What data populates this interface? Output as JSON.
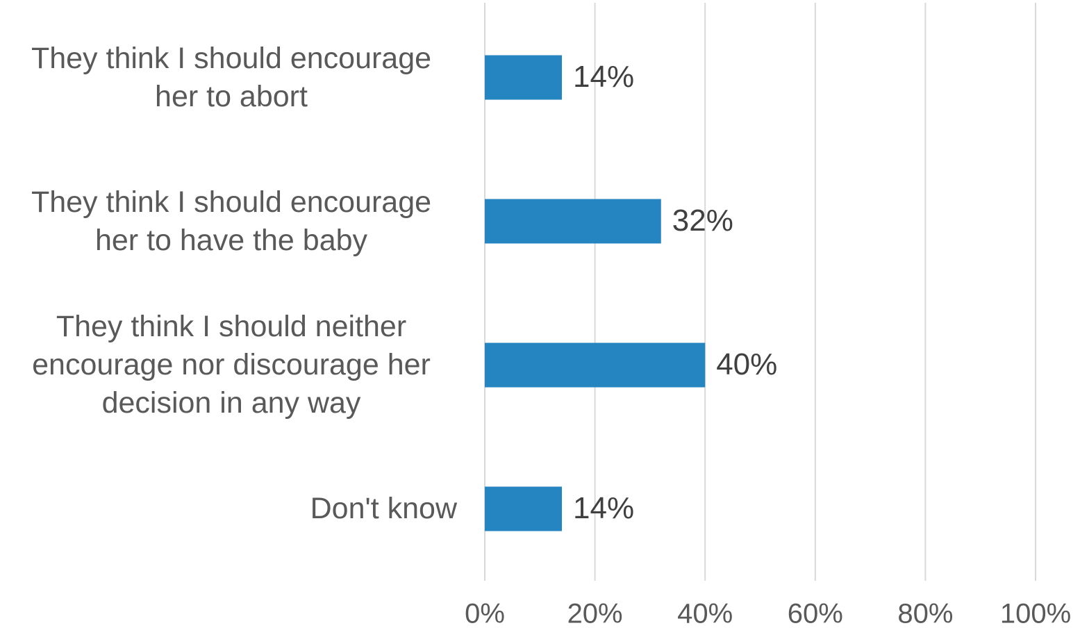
{
  "chart_data": {
    "type": "bar",
    "orientation": "horizontal",
    "categories": [
      "They think I should encourage her to abort",
      "They think I should encourage her to have the baby",
      "They think I should neither encourage nor discourage her decision in any way",
      "Don't know"
    ],
    "values": [
      14,
      32,
      40,
      14
    ],
    "value_labels": [
      "14%",
      "32%",
      "40%",
      "14%"
    ],
    "color": "#2585c0",
    "xlim": [
      0,
      100
    ],
    "xticks": [
      {
        "value": 0,
        "label": "0%"
      },
      {
        "value": 20,
        "label": "20%"
      },
      {
        "value": 40,
        "label": "40%"
      },
      {
        "value": 60,
        "label": "60%"
      },
      {
        "value": 80,
        "label": "80%"
      },
      {
        "value": 100,
        "label": "100%"
      }
    ],
    "grid": true
  }
}
